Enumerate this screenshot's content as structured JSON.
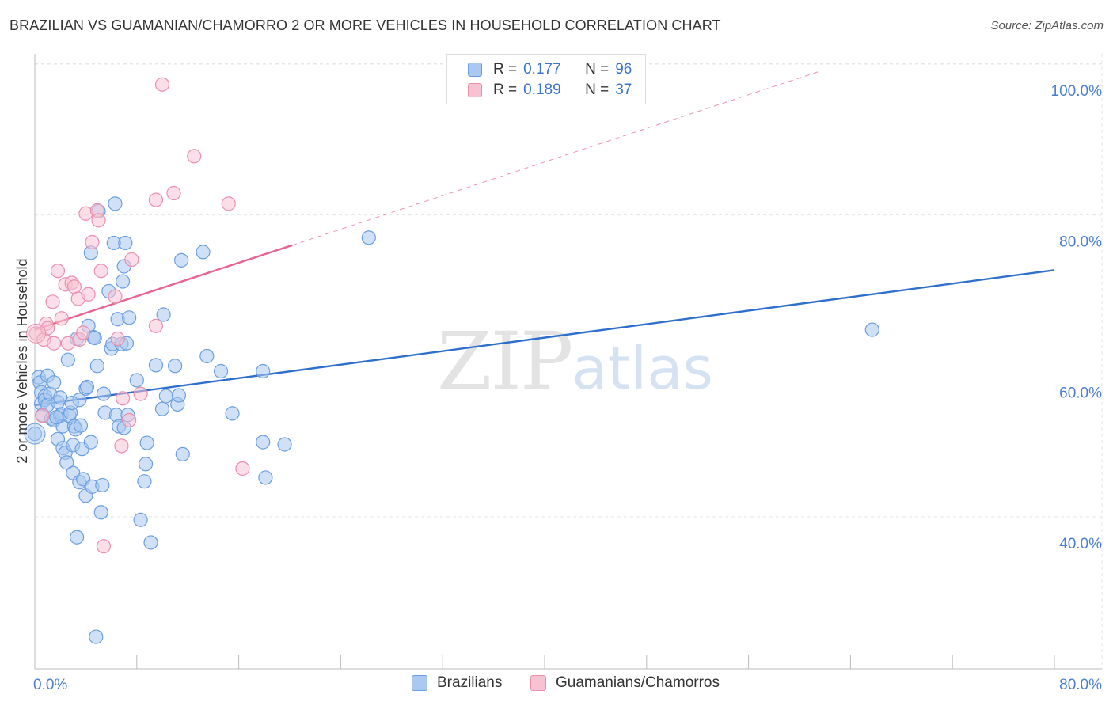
{
  "header": {
    "title": "BRAZILIAN VS GUAMANIAN/CHAMORRO 2 OR MORE VEHICLES IN HOUSEHOLD CORRELATION CHART",
    "source": "Source: ZipAtlas.com"
  },
  "watermark": {
    "zip": "ZIP",
    "atlas": "atlas"
  },
  "legend": {
    "rows": [
      {
        "r_label": "R =",
        "r_value": "0.177",
        "n_label": "N =",
        "n_value": "96"
      },
      {
        "r_label": "R =",
        "r_value": "0.189",
        "n_label": "N =",
        "n_value": "37"
      }
    ]
  },
  "bottom_legend": {
    "items": [
      {
        "label": "Brazilians"
      },
      {
        "label": "Guamanians/Chamorros"
      }
    ]
  },
  "colors": {
    "blue_fill": "#aac8f0",
    "blue_stroke": "#6b9ee0",
    "blue_line": "#2f6fcc",
    "pink_fill": "#f7c3d3",
    "pink_stroke": "#ea8fac",
    "pink_line": "#e8648f",
    "grid": "#e6e6e6",
    "axis_label": "#4a7fd0"
  },
  "chart_data": {
    "type": "scatter",
    "title": "BRAZILIAN VS GUAMANIAN/CHAMORRO 2 OR MORE VEHICLES IN HOUSEHOLD CORRELATION CHART",
    "xlabel": "",
    "ylabel": "2 or more Vehicles in Household",
    "xlim": [
      0,
      80
    ],
    "ylim": [
      20,
      104
    ],
    "x_tick_labels": [
      "0.0%",
      "80.0%"
    ],
    "y_ticks": [
      40,
      60,
      80,
      100
    ],
    "y_tick_labels": [
      "40.0%",
      "60.0%",
      "80.0%",
      "100.0%"
    ],
    "grid": true,
    "series": [
      {
        "name": "Brazilians",
        "color": "blue",
        "r": 0.177,
        "n": 96,
        "trend": {
          "x0": 0,
          "y0": 54.8,
          "x1": 80,
          "y1": 72.7,
          "dashed_to": null
        },
        "points": [
          [
            0.0,
            51.0
          ],
          [
            0.3,
            58.5
          ],
          [
            0.4,
            57.8
          ],
          [
            0.5,
            56.5
          ],
          [
            0.5,
            55.0
          ],
          [
            0.6,
            53.5
          ],
          [
            0.8,
            56.0
          ],
          [
            0.8,
            55.5
          ],
          [
            1.0,
            58.7
          ],
          [
            1.0,
            54.8
          ],
          [
            1.2,
            56.3
          ],
          [
            1.3,
            53.0
          ],
          [
            1.5,
            57.8
          ],
          [
            1.5,
            52.8
          ],
          [
            1.8,
            55.2
          ],
          [
            1.8,
            50.3
          ],
          [
            2.0,
            55.8
          ],
          [
            2.0,
            53.4
          ],
          [
            2.1,
            53.6
          ],
          [
            2.2,
            52.0
          ],
          [
            2.2,
            49.1
          ],
          [
            2.4,
            48.5
          ],
          [
            2.5,
            47.2
          ],
          [
            2.6,
            60.8
          ],
          [
            2.7,
            53.4
          ],
          [
            2.8,
            53.8
          ],
          [
            3.0,
            49.5
          ],
          [
            3.0,
            45.8
          ],
          [
            3.1,
            52.0
          ],
          [
            3.2,
            51.6
          ],
          [
            3.3,
            63.6
          ],
          [
            3.3,
            37.3
          ],
          [
            3.5,
            55.5
          ],
          [
            3.5,
            44.6
          ],
          [
            3.6,
            52.1
          ],
          [
            3.7,
            49.0
          ],
          [
            3.8,
            45.0
          ],
          [
            4.0,
            57.0
          ],
          [
            4.0,
            42.8
          ],
          [
            4.1,
            57.2
          ],
          [
            4.2,
            65.3
          ],
          [
            4.4,
            75.0
          ],
          [
            4.4,
            49.9
          ],
          [
            4.5,
            44.0
          ],
          [
            4.6,
            63.8
          ],
          [
            4.7,
            63.7
          ],
          [
            4.8,
            24.1
          ],
          [
            4.9,
            60.0
          ],
          [
            5.0,
            80.5
          ],
          [
            5.2,
            40.6
          ],
          [
            5.3,
            44.2
          ],
          [
            5.4,
            56.3
          ],
          [
            5.5,
            53.8
          ],
          [
            5.8,
            69.9
          ],
          [
            6.0,
            62.3
          ],
          [
            6.1,
            62.9
          ],
          [
            6.2,
            76.3
          ],
          [
            6.3,
            81.5
          ],
          [
            6.4,
            53.5
          ],
          [
            6.5,
            66.2
          ],
          [
            6.6,
            52.0
          ],
          [
            6.8,
            62.9
          ],
          [
            6.9,
            71.2
          ],
          [
            7.0,
            73.2
          ],
          [
            7.0,
            51.8
          ],
          [
            7.1,
            76.3
          ],
          [
            7.2,
            63.0
          ],
          [
            7.3,
            53.5
          ],
          [
            7.4,
            66.4
          ],
          [
            8.0,
            58.1
          ],
          [
            8.3,
            39.6
          ],
          [
            8.6,
            44.7
          ],
          [
            8.7,
            47.0
          ],
          [
            8.8,
            49.8
          ],
          [
            9.1,
            36.6
          ],
          [
            9.5,
            60.1
          ],
          [
            10.0,
            54.3
          ],
          [
            10.1,
            66.8
          ],
          [
            10.3,
            56.0
          ],
          [
            11.0,
            60.0
          ],
          [
            11.2,
            54.9
          ],
          [
            11.3,
            56.1
          ],
          [
            11.5,
            74.0
          ],
          [
            11.6,
            48.3
          ],
          [
            13.2,
            75.1
          ],
          [
            13.5,
            61.3
          ],
          [
            14.6,
            59.3
          ],
          [
            15.5,
            53.7
          ],
          [
            17.9,
            59.3
          ],
          [
            17.9,
            49.9
          ],
          [
            18.1,
            45.2
          ],
          [
            19.6,
            49.6
          ],
          [
            26.2,
            77.0
          ],
          [
            65.7,
            64.8
          ],
          [
            1.7,
            53.2
          ],
          [
            2.9,
            55.1
          ]
        ]
      },
      {
        "name": "Guamanians/Chamorros",
        "color": "pink",
        "r": 0.189,
        "n": 37,
        "trend": {
          "x0": 0,
          "y0": 64.8,
          "x1": 20.2,
          "y1": 76.0,
          "dashed_to": {
            "x": 61.5,
            "y": 99.0
          }
        },
        "points": [
          [
            0.1,
            64.3
          ],
          [
            0.6,
            53.4
          ],
          [
            0.7,
            63.5
          ],
          [
            0.9,
            65.6
          ],
          [
            1.0,
            65.0
          ],
          [
            1.4,
            68.5
          ],
          [
            1.5,
            63.0
          ],
          [
            1.8,
            72.6
          ],
          [
            2.1,
            66.3
          ],
          [
            2.4,
            70.8
          ],
          [
            2.6,
            63.0
          ],
          [
            2.9,
            71.0
          ],
          [
            3.1,
            70.5
          ],
          [
            3.4,
            68.9
          ],
          [
            3.5,
            63.5
          ],
          [
            3.8,
            64.4
          ],
          [
            4.0,
            80.2
          ],
          [
            4.2,
            69.5
          ],
          [
            4.5,
            76.4
          ],
          [
            4.9,
            80.6
          ],
          [
            5.0,
            79.3
          ],
          [
            5.2,
            72.6
          ],
          [
            5.4,
            36.1
          ],
          [
            6.3,
            69.2
          ],
          [
            6.5,
            63.6
          ],
          [
            6.8,
            49.4
          ],
          [
            6.9,
            55.7
          ],
          [
            7.4,
            52.8
          ],
          [
            7.6,
            74.1
          ],
          [
            8.3,
            56.3
          ],
          [
            9.5,
            65.3
          ],
          [
            9.5,
            82.0
          ],
          [
            10.0,
            97.3
          ],
          [
            10.9,
            82.9
          ],
          [
            12.5,
            87.8
          ],
          [
            15.2,
            81.5
          ],
          [
            16.3,
            46.4
          ]
        ]
      }
    ]
  }
}
